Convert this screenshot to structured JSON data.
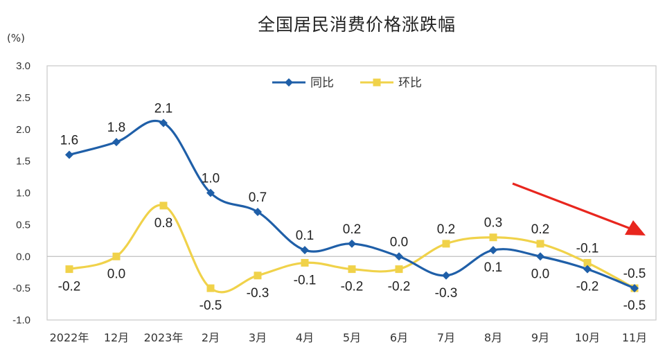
{
  "colors": {
    "series_yoy": "#1f5fa8",
    "series_mom": "#f0d24a",
    "arrow": "#e8261e",
    "frame": "#c9c9c9",
    "zero_line": "#bfbfbf"
  },
  "chart_data": {
    "type": "line",
    "title": "全国居民消费价格涨跌幅",
    "ylabel": "(%)",
    "xlabel": "",
    "ylim": [
      -1.0,
      3.0
    ],
    "yticks": [
      "3.0",
      "2.5",
      "2.0",
      "1.5",
      "1.0",
      "0.5",
      "0.0",
      "-0.5",
      "-1.0"
    ],
    "ytick_values": [
      3.0,
      2.5,
      2.0,
      1.5,
      1.0,
      0.5,
      0.0,
      -0.5,
      -1.0
    ],
    "categories": [
      "2022年",
      "12月",
      "2023年",
      "2月",
      "3月",
      "4月",
      "5月",
      "6月",
      "7月",
      "8月",
      "9月",
      "10月",
      "11月"
    ],
    "series": [
      {
        "name": "同比",
        "values": [
          1.6,
          1.8,
          2.1,
          1.0,
          0.7,
          0.1,
          0.2,
          0.0,
          -0.3,
          0.1,
          0.0,
          -0.2,
          -0.5
        ],
        "labels": [
          "1.6",
          "1.8",
          "2.1",
          "1.0",
          "0.7",
          "0.1",
          "0.2",
          "0.0",
          "-0.3",
          "0.1",
          "0.0",
          "-0.2",
          "-0.5"
        ],
        "label_position": [
          "above",
          "above",
          "above",
          "above",
          "above",
          "above",
          "above",
          "above",
          "below",
          "below",
          "below",
          "below",
          "below"
        ]
      },
      {
        "name": "环比",
        "values": [
          -0.2,
          0.0,
          0.8,
          -0.5,
          -0.3,
          -0.1,
          -0.2,
          -0.2,
          0.2,
          0.3,
          0.2,
          -0.1,
          -0.5
        ],
        "labels": [
          "-0.2",
          "0.0",
          "0.8",
          "-0.5",
          "-0.3",
          "-0.1",
          "-0.2",
          "-0.2",
          "0.2",
          "0.3",
          "0.2",
          "-0.1",
          "-0.5"
        ],
        "label_position": [
          "below",
          "below",
          "below",
          "below",
          "below",
          "below",
          "below",
          "below",
          "above",
          "above",
          "above",
          "above",
          "above"
        ]
      }
    ],
    "grid": false,
    "legend": "top-center",
    "annotation": {
      "type": "arrow",
      "color": "#e8261e",
      "target": "11月"
    }
  }
}
